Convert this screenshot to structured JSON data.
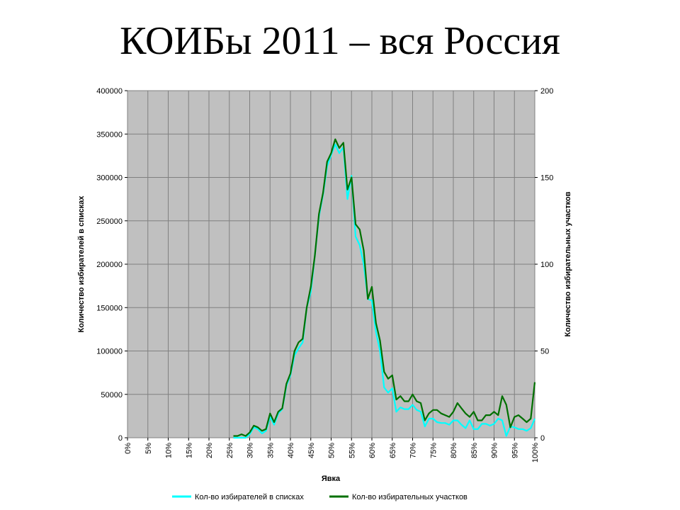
{
  "slide": {
    "title": "КОИБы 2011 – вся Россия"
  },
  "chart_data": {
    "type": "line",
    "xlabel": "Явка",
    "ylabel_left": "Количество избирателей в списках",
    "ylabel_right": "Количество избирательных участков",
    "x_ticks": [
      "0%",
      "5%",
      "10%",
      "15%",
      "20%",
      "25%",
      "30%",
      "35%",
      "40%",
      "45%",
      "50%",
      "55%",
      "60%",
      "65%",
      "70%",
      "75%",
      "80%",
      "85%",
      "90%",
      "95%",
      "100%"
    ],
    "xlim": [
      0,
      100
    ],
    "ylim_left": [
      0,
      400000
    ],
    "y_ticks_left": [
      "0",
      "50000",
      "100000",
      "150000",
      "200000",
      "250000",
      "300000",
      "350000",
      "400000"
    ],
    "ylim_right": [
      0,
      200
    ],
    "y_ticks_right": [
      "0",
      "50",
      "100",
      "150",
      "200"
    ],
    "grid": true,
    "plot_background": "#c0c0c0",
    "legend_position": "bottom",
    "series": [
      {
        "name": "Кол-во избирателей в списках",
        "axis": "left",
        "color": "#00ffff",
        "x": [
          26,
          27,
          28,
          29,
          30,
          31,
          32,
          33,
          34,
          35,
          36,
          37,
          38,
          39,
          40,
          41,
          42,
          43,
          44,
          45,
          46,
          47,
          48,
          49,
          50,
          51,
          52,
          53,
          54,
          55,
          56,
          57,
          58,
          59,
          60,
          61,
          62,
          63,
          64,
          65,
          66,
          67,
          68,
          69,
          70,
          71,
          72,
          73,
          74,
          75,
          76,
          77,
          78,
          79,
          80,
          81,
          82,
          83,
          84,
          85,
          86,
          87,
          88,
          89,
          90,
          91,
          92,
          93,
          94,
          95,
          96,
          97,
          98,
          99,
          100
        ],
        "y": [
          0,
          0,
          0,
          0,
          4000,
          12000,
          10000,
          5000,
          8000,
          24000,
          15000,
          28000,
          33000,
          60000,
          72000,
          95000,
          103000,
          110000,
          150000,
          168000,
          210000,
          255000,
          280000,
          313000,
          326000,
          338000,
          328000,
          335000,
          275000,
          302000,
          232000,
          222000,
          200000,
          160000,
          158000,
          122000,
          100000,
          58000,
          52000,
          57000,
          30000,
          35000,
          33000,
          33000,
          38000,
          32000,
          30000,
          13000,
          22000,
          22000,
          18000,
          17000,
          17000,
          15000,
          20000,
          20000,
          15000,
          11000,
          20000,
          10000,
          10000,
          16000,
          16000,
          14000,
          16000,
          22000,
          20000,
          2000,
          13000,
          12000,
          10000,
          10000,
          8000,
          11000,
          22000
        ]
      },
      {
        "name": "Кол-во избирательных участков",
        "axis": "right",
        "color": "#007000",
        "x": [
          26,
          27,
          28,
          29,
          30,
          31,
          32,
          33,
          34,
          35,
          36,
          37,
          38,
          39,
          40,
          41,
          42,
          43,
          44,
          45,
          46,
          47,
          48,
          49,
          50,
          51,
          52,
          53,
          54,
          55,
          56,
          57,
          58,
          59,
          60,
          61,
          62,
          63,
          64,
          65,
          66,
          67,
          68,
          69,
          70,
          71,
          72,
          73,
          74,
          75,
          76,
          77,
          78,
          79,
          80,
          81,
          82,
          83,
          84,
          85,
          86,
          87,
          88,
          89,
          90,
          91,
          92,
          93,
          94,
          95,
          96,
          97,
          98,
          99,
          100
        ],
        "y": [
          1,
          1,
          2,
          1,
          3,
          7,
          6,
          4,
          5,
          14,
          9,
          15,
          17,
          31,
          37,
          50,
          55,
          57,
          75,
          87,
          105,
          129,
          141,
          159,
          164,
          172,
          167,
          170,
          143,
          150,
          123,
          120,
          108,
          80,
          87,
          66,
          56,
          38,
          34,
          36,
          22,
          24,
          21,
          21,
          25,
          21,
          20,
          10,
          14,
          16,
          16,
          14,
          13,
          12,
          15,
          20,
          17,
          14,
          12,
          15,
          10,
          10,
          13,
          13,
          15,
          13,
          24,
          19,
          6,
          12,
          13,
          11,
          9,
          11,
          32
        ]
      }
    ]
  }
}
